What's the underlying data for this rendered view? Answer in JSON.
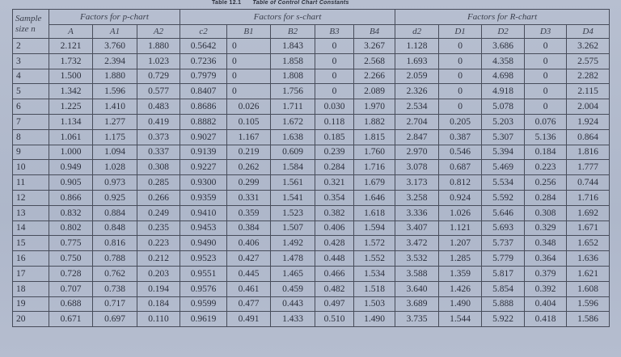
{
  "caption": {
    "number": "Table 12.1",
    "title": "Table of Control Chart Constants"
  },
  "header": {
    "sample_size": "Sample size n",
    "groups": [
      "Factors for p-chart",
      "Factors for s-chart",
      "Factors for R-chart"
    ],
    "columns": [
      "A",
      "A1",
      "A2",
      "c2",
      "B1",
      "B2",
      "B3",
      "B4",
      "d2",
      "D1",
      "D2",
      "D3",
      "D4"
    ]
  },
  "rows": [
    [
      "2",
      "2.121",
      "3.760",
      "1.880",
      "0.5642",
      "0",
      "1.843",
      "0",
      "3.267",
      "1.128",
      "0",
      "3.686",
      "0",
      "3.262"
    ],
    [
      "3",
      "1.732",
      "2.394",
      "1.023",
      "0.7236",
      "0",
      "1.858",
      "0",
      "2.568",
      "1.693",
      "0",
      "4.358",
      "0",
      "2.575"
    ],
    [
      "4",
      "1.500",
      "1.880",
      "0.729",
      "0.7979",
      "0",
      "1.808",
      "0",
      "2.266",
      "2.059",
      "0",
      "4.698",
      "0",
      "2.282"
    ],
    [
      "5",
      "1.342",
      "1.596",
      "0.577",
      "0.8407",
      "0",
      "1.756",
      "0",
      "2.089",
      "2.326",
      "0",
      "4.918",
      "0",
      "2.115"
    ],
    [
      "6",
      "1.225",
      "1.410",
      "0.483",
      "0.8686",
      "0.026",
      "1.711",
      "0.030",
      "1.970",
      "2.534",
      "0",
      "5.078",
      "0",
      "2.004"
    ],
    [
      "7",
      "1.134",
      "1.277",
      "0.419",
      "0.8882",
      "0.105",
      "1.672",
      "0.118",
      "1.882",
      "2.704",
      "0.205",
      "5.203",
      "0.076",
      "1.924"
    ],
    [
      "8",
      "1.061",
      "1.175",
      "0.373",
      "0.9027",
      "1.167",
      "1.638",
      "0.185",
      "1.815",
      "2.847",
      "0.387",
      "5.307",
      "5.136",
      "0.864"
    ],
    [
      "9",
      "1.000",
      "1.094",
      "0.337",
      "0.9139",
      "0.219",
      "0.609",
      "0.239",
      "1.760",
      "2.970",
      "0.546",
      "5.394",
      "0.184",
      "1.816"
    ],
    [
      "10",
      "0.949",
      "1.028",
      "0.308",
      "0.9227",
      "0.262",
      "1.584",
      "0.284",
      "1.716",
      "3.078",
      "0.687",
      "5.469",
      "0.223",
      "1.777"
    ],
    [
      "11",
      "0.905",
      "0.973",
      "0.285",
      "0.9300",
      "0.299",
      "1.561",
      "0.321",
      "1.679",
      "3.173",
      "0.812",
      "5.534",
      "0.256",
      "0.744"
    ],
    [
      "12",
      "0.866",
      "0.925",
      "0.266",
      "0.9359",
      "0.331",
      "1.541",
      "0.354",
      "1.646",
      "3.258",
      "0.924",
      "5.592",
      "0.284",
      "1.716"
    ],
    [
      "13",
      "0.832",
      "0.884",
      "0.249",
      "0.9410",
      "0.359",
      "1.523",
      "0.382",
      "1.618",
      "3.336",
      "1.026",
      "5.646",
      "0.308",
      "1.692"
    ],
    [
      "14",
      "0.802",
      "0.848",
      "0.235",
      "0.9453",
      "0.384",
      "1.507",
      "0.406",
      "1.594",
      "3.407",
      "1.121",
      "5.693",
      "0.329",
      "1.671"
    ],
    [
      "15",
      "0.775",
      "0.816",
      "0.223",
      "0.9490",
      "0.406",
      "1.492",
      "0.428",
      "1.572",
      "3.472",
      "1.207",
      "5.737",
      "0.348",
      "1.652"
    ],
    [
      "16",
      "0.750",
      "0.788",
      "0.212",
      "0.9523",
      "0.427",
      "1.478",
      "0.448",
      "1.552",
      "3.532",
      "1.285",
      "5.779",
      "0.364",
      "1.636"
    ],
    [
      "17",
      "0.728",
      "0.762",
      "0.203",
      "0.9551",
      "0.445",
      "1.465",
      "0.466",
      "1.534",
      "3.588",
      "1.359",
      "5.817",
      "0.379",
      "1.621"
    ],
    [
      "18",
      "0.707",
      "0.738",
      "0.194",
      "0.9576",
      "0.461",
      "0.459",
      "0.482",
      "1.518",
      "3.640",
      "1.426",
      "5.854",
      "0.392",
      "1.608"
    ],
    [
      "19",
      "0.688",
      "0.717",
      "0.184",
      "0.9599",
      "0.477",
      "0.443",
      "0.497",
      "1.503",
      "3.689",
      "1.490",
      "5.888",
      "0.404",
      "1.596"
    ],
    [
      "20",
      "0.671",
      "0.697",
      "0.110",
      "0.9619",
      "0.491",
      "1.433",
      "0.510",
      "1.490",
      "3.735",
      "1.544",
      "5.922",
      "0.418",
      "1.586"
    ]
  ]
}
